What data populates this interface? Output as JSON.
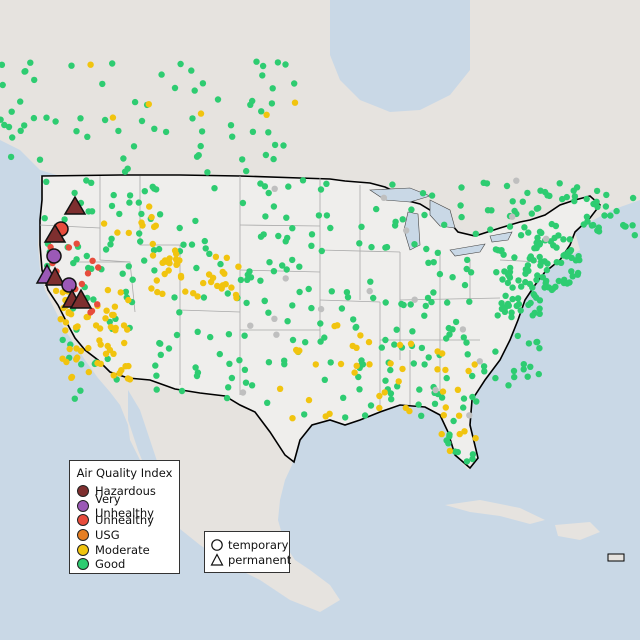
{
  "legend": {
    "title": "Air Quality Index",
    "categories": [
      {
        "label": "Hazardous",
        "color": "#7e2f2f"
      },
      {
        "label": "Very Unhealthy",
        "color": "#9b59b6"
      },
      {
        "label": "Unhealthy",
        "color": "#e74c3c"
      },
      {
        "label": "USG",
        "color": "#e67e22"
      },
      {
        "label": "Moderate",
        "color": "#f1c40f"
      },
      {
        "label": "Good",
        "color": "#2ecc71"
      }
    ]
  },
  "monitor_types": {
    "temporary": {
      "label": "temporary",
      "shape": "circle-icon"
    },
    "permanent": {
      "label": "permanent",
      "shape": "triangle-icon"
    }
  },
  "colors": {
    "ocean": "#c9d8e6",
    "land": "#e6e3df",
    "us_land": "#efeeec",
    "border": "#000000",
    "state_lines": "#a9a9a9",
    "inactive_monitor": "#bfbfbf"
  }
}
